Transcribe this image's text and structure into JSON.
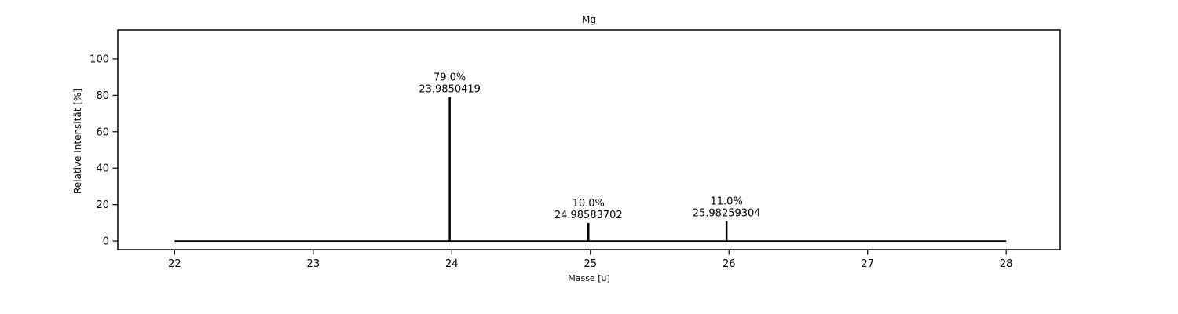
{
  "chart_data": {
    "type": "bar",
    "subtype": "stem-mass-spectrum",
    "title": "Mg",
    "xlabel": "Masse [u]",
    "ylabel": "Relative Intensität [%]",
    "x": [
      23.9850419,
      24.98583702,
      25.98259304
    ],
    "values": [
      79.0,
      10.0,
      11.0
    ],
    "annotations": [
      {
        "percent": "79.0%",
        "mass": "23.9850419"
      },
      {
        "percent": "10.0%",
        "mass": "24.98583702"
      },
      {
        "percent": "11.0%",
        "mass": "25.98259304"
      }
    ],
    "x_ticks": [
      22,
      23,
      24,
      25,
      26,
      27,
      28
    ],
    "y_ticks": [
      0,
      20,
      40,
      60,
      80,
      100
    ],
    "xlim": [
      21.59,
      28.39
    ],
    "ylim": [
      -4.7,
      115.9
    ],
    "baseline": {
      "y": 0,
      "x_start": 22,
      "x_end": 28
    },
    "grid": false,
    "legend": null,
    "colors": {
      "stem": "#000000",
      "axis": "#000000",
      "text": "#000000",
      "background": "#ffffff"
    }
  }
}
